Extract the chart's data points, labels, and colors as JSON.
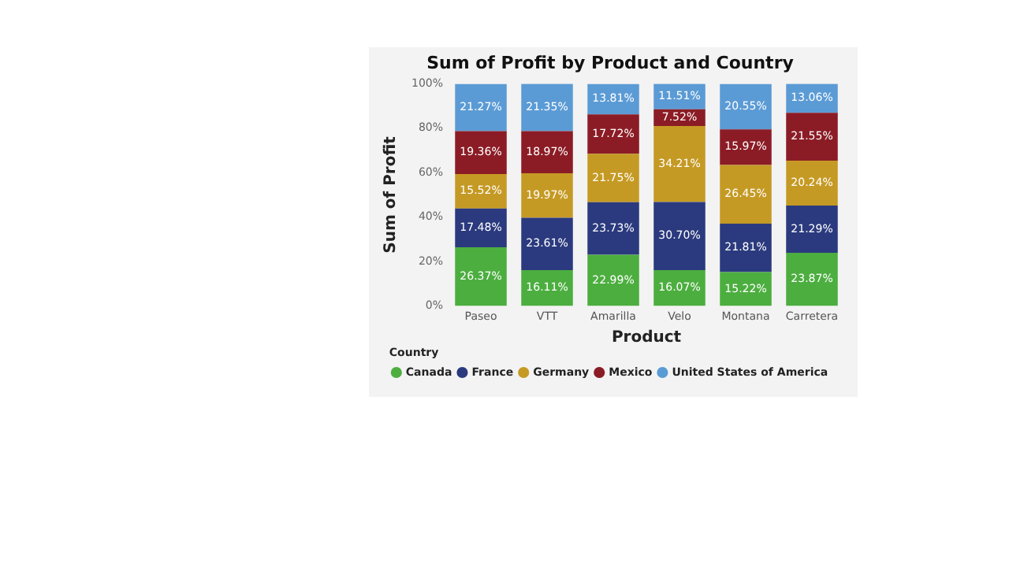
{
  "chart_data": {
    "type": "bar",
    "stacked": true,
    "title": "Sum of Profit by Product and Country",
    "xlabel": "Product",
    "ylabel": "Sum of Profit",
    "legend_title": "Country",
    "legend": "bottom",
    "grid": false,
    "categories": [
      "Paseo",
      "VTT",
      "Amarilla",
      "Velo",
      "Montana",
      "Carretera"
    ],
    "ylim": [
      0,
      100
    ],
    "yticks": [
      {
        "value": 0,
        "label": "0%"
      },
      {
        "value": 20,
        "label": "20%"
      },
      {
        "value": 40,
        "label": "40%"
      },
      {
        "value": 60,
        "label": "60%"
      },
      {
        "value": 80,
        "label": "80%"
      },
      {
        "value": 100,
        "label": "100%"
      }
    ],
    "series": [
      {
        "name": "Canada",
        "color": "#4cae3f",
        "values": [
          26.37,
          16.11,
          22.99,
          16.07,
          15.22,
          23.87
        ],
        "value_labels": [
          "26.37%",
          "16.11%",
          "22.99%",
          "16.07%",
          "15.22%",
          "23.87%"
        ]
      },
      {
        "name": "France",
        "color": "#2b3a7e",
        "values": [
          17.48,
          23.61,
          23.73,
          30.7,
          21.81,
          21.29
        ],
        "value_labels": [
          "17.48%",
          "23.61%",
          "23.73%",
          "30.70%",
          "21.81%",
          "21.29%"
        ]
      },
      {
        "name": "Germany",
        "color": "#c59a24",
        "values": [
          15.52,
          19.97,
          21.75,
          34.21,
          26.45,
          20.24
        ],
        "value_labels": [
          "15.52%",
          "19.97%",
          "21.75%",
          "34.21%",
          "26.45%",
          "20.24%"
        ]
      },
      {
        "name": "Mexico",
        "color": "#8b1c25",
        "values": [
          19.36,
          18.97,
          17.72,
          7.52,
          15.97,
          21.55
        ],
        "value_labels": [
          "19.36%",
          "18.97%",
          "17.72%",
          "7.52%",
          "15.97%",
          "21.55%"
        ]
      },
      {
        "name": "United States of America",
        "color": "#5b9bd5",
        "values": [
          21.27,
          21.35,
          13.81,
          11.51,
          20.55,
          13.06
        ],
        "value_labels": [
          "21.27%",
          "21.35%",
          "13.81%",
          "11.51%",
          "20.55%",
          "13.06%"
        ]
      }
    ]
  }
}
